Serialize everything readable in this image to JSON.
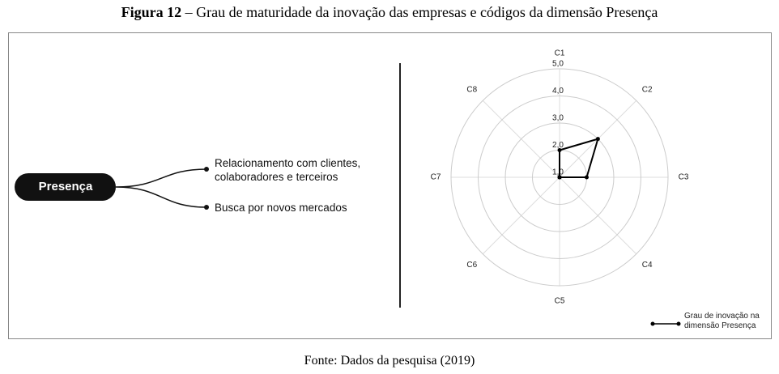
{
  "caption": {
    "label": "Figura 12",
    "text": "– Grau de maturidade da inovação das empresas e códigos da dimensão Presença"
  },
  "mindmap": {
    "root": "Presença",
    "branches": [
      "Relacionamento com clientes, colaboradores e terceiros",
      "Busca por novos mercados"
    ]
  },
  "chart_data": {
    "type": "radar",
    "categories": [
      "C1",
      "C2",
      "C3",
      "C4",
      "C5",
      "C6",
      "C7",
      "C8"
    ],
    "series": [
      {
        "name": "Grau de inovação na dimensão Presença",
        "color": "#000000",
        "values": [
          2,
          3,
          2,
          1,
          1,
          1,
          1,
          1
        ]
      }
    ],
    "rlim": [
      1,
      5
    ],
    "rticks": [
      {
        "value": 1,
        "label": "1,0"
      },
      {
        "value": 2,
        "label": "2,0"
      },
      {
        "value": 3,
        "label": "3,0"
      },
      {
        "value": 4,
        "label": "4,0"
      },
      {
        "value": 5,
        "label": "5,0"
      }
    ],
    "grid": true,
    "legend": "bottom-right"
  },
  "source": "Fonte: Dados da pesquisa (2019)"
}
